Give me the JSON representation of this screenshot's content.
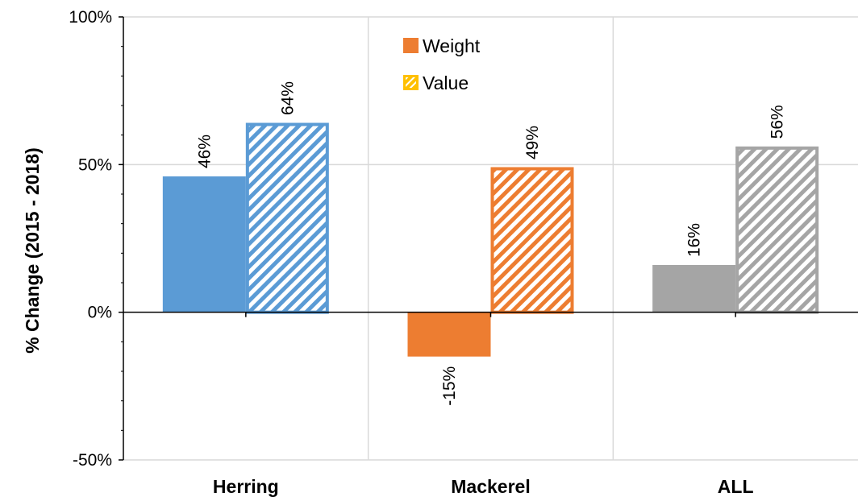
{
  "chart_data": {
    "type": "bar",
    "categories": [
      "Herring",
      "Mackerel",
      "ALL"
    ],
    "series": [
      {
        "name": "Weight",
        "values": [
          46,
          -15,
          16
        ],
        "fill": "solid"
      },
      {
        "name": "Value",
        "values": [
          64,
          49,
          56
        ],
        "fill": "hatched"
      }
    ],
    "category_colors": [
      "#5B9BD5",
      "#ED7D31",
      "#A5A5A5"
    ],
    "legend_colors": {
      "Weight": "#ED7D31",
      "Value": "#FFC000"
    },
    "data_labels": [
      [
        "46%",
        "-15%",
        "16%"
      ],
      [
        "64%",
        "49%",
        "56%"
      ]
    ],
    "ylabel": "% Change (2015 - 2018)",
    "ylim": [
      -50,
      100
    ],
    "yticks": [
      -50,
      0,
      50,
      100
    ],
    "ytick_labels": [
      "-50%",
      "0%",
      "50%",
      "100%"
    ],
    "grid": true,
    "legend_position": "top-center"
  }
}
